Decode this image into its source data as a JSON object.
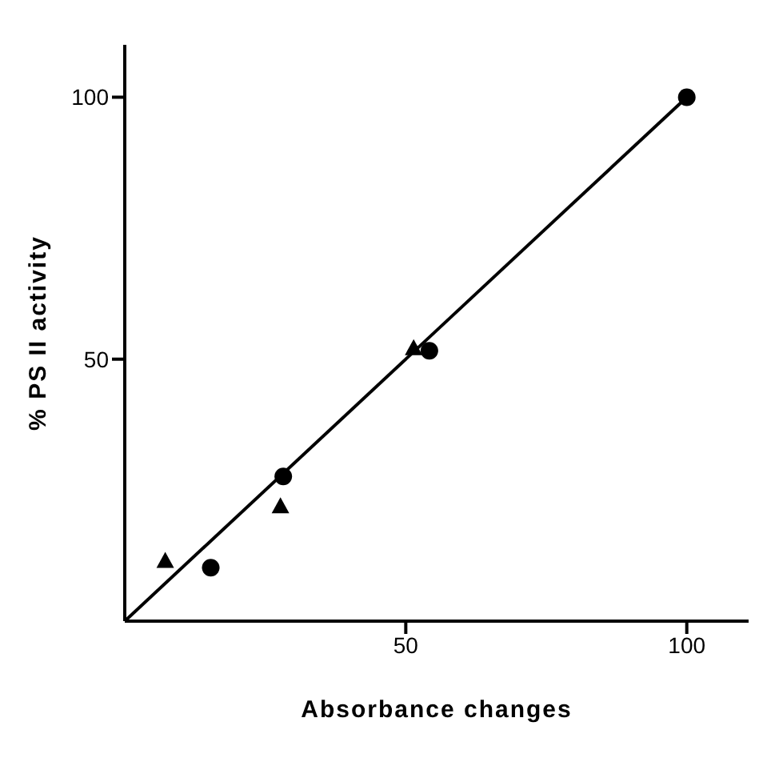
{
  "chart_data": {
    "type": "scatter",
    "xlabel": "Absorbance changes",
    "ylabel": "% PS II activity",
    "xlim": [
      0,
      111
    ],
    "ylim": [
      0,
      110
    ],
    "xticks": [
      50,
      100
    ],
    "yticks": [
      50,
      100
    ],
    "grid": false,
    "legend": false,
    "series": [
      {
        "marker": "circle",
        "color": "#000000",
        "x": [
          15.3,
          28.2,
          54.2,
          100
        ],
        "values": [
          10.2,
          27.6,
          51.6,
          100
        ]
      },
      {
        "marker": "triangle",
        "color": "#000000",
        "x": [
          7.2,
          27.7,
          51.4
        ],
        "values": [
          11.4,
          21.8,
          52
        ]
      },
      {
        "type": "line",
        "marker": "none",
        "color": "#000000",
        "x": [
          0,
          100
        ],
        "values": [
          0,
          100
        ]
      }
    ]
  }
}
